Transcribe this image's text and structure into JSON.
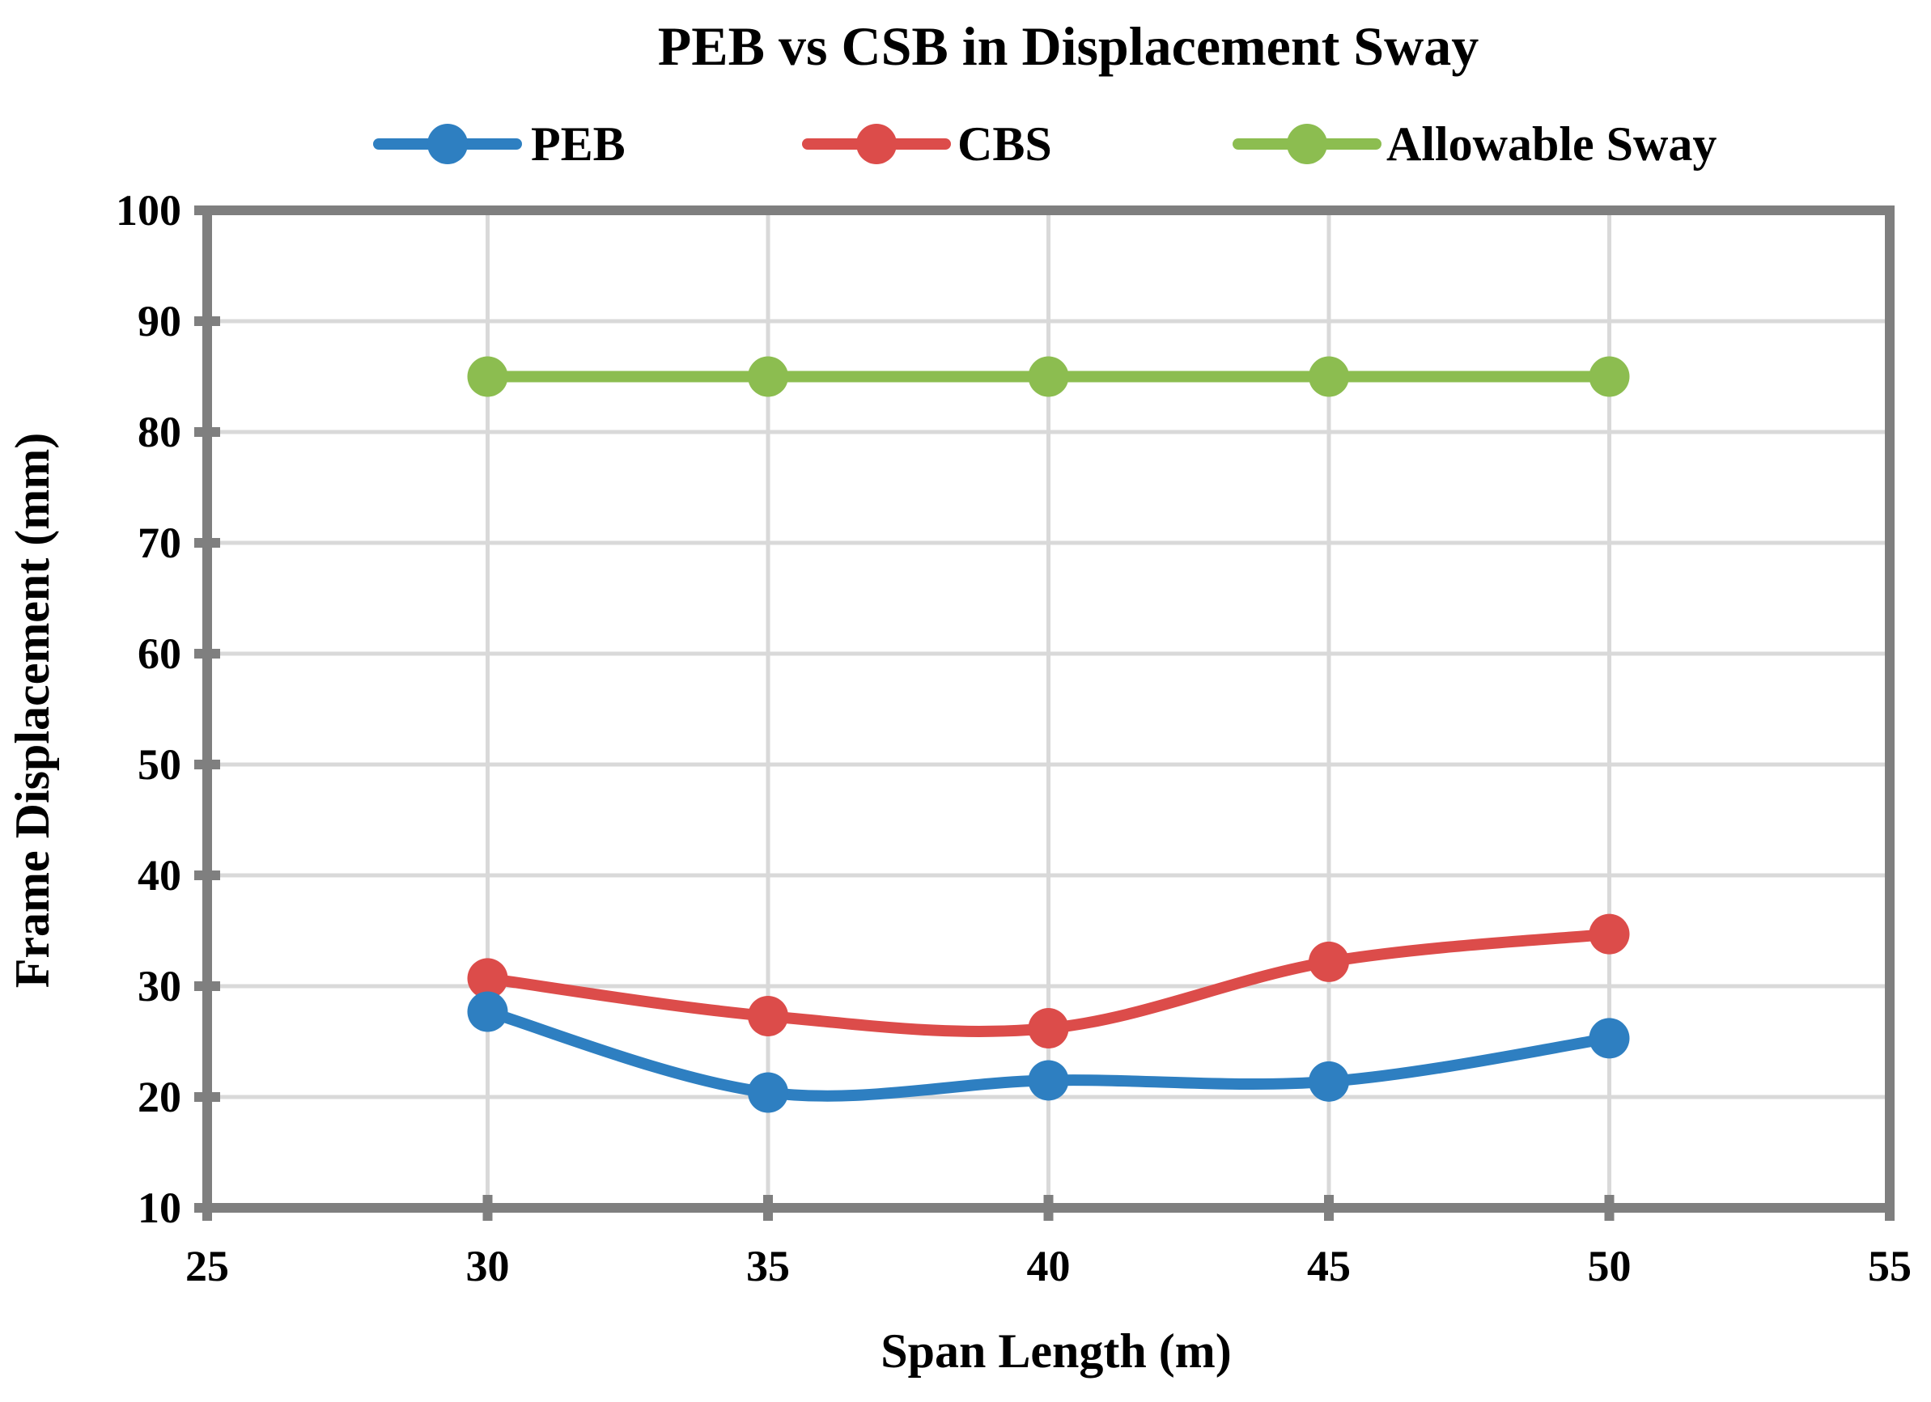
{
  "chart_data": {
    "type": "line",
    "title": "PEB vs CSB in Displacement Sway",
    "xlabel": "Span Length (m)",
    "ylabel": "Frame Displacement (mm)",
    "xlim": [
      25,
      55
    ],
    "ylim": [
      10,
      100
    ],
    "xticks": [
      25,
      30,
      35,
      40,
      45,
      50,
      55
    ],
    "yticks": [
      10,
      20,
      30,
      40,
      50,
      60,
      70,
      80,
      90,
      100
    ],
    "grid": true,
    "legend_position": "top",
    "x": [
      30,
      35,
      40,
      45,
      50
    ],
    "series": [
      {
        "name": "PEB",
        "color": "#2e7fc1",
        "values": [
          27.7,
          20.4,
          21.5,
          21.4,
          25.3
        ]
      },
      {
        "name": "CBS",
        "color": "#dc4c4a",
        "values": [
          30.7,
          27.3,
          26.2,
          32.2,
          34.7
        ]
      },
      {
        "name": "Allowable Sway",
        "color": "#8cbd50",
        "values": [
          85,
          85,
          85,
          85,
          85
        ]
      }
    ],
    "colors": {
      "frame": "#7f7f7f",
      "grid": "#d9d9d9"
    }
  }
}
